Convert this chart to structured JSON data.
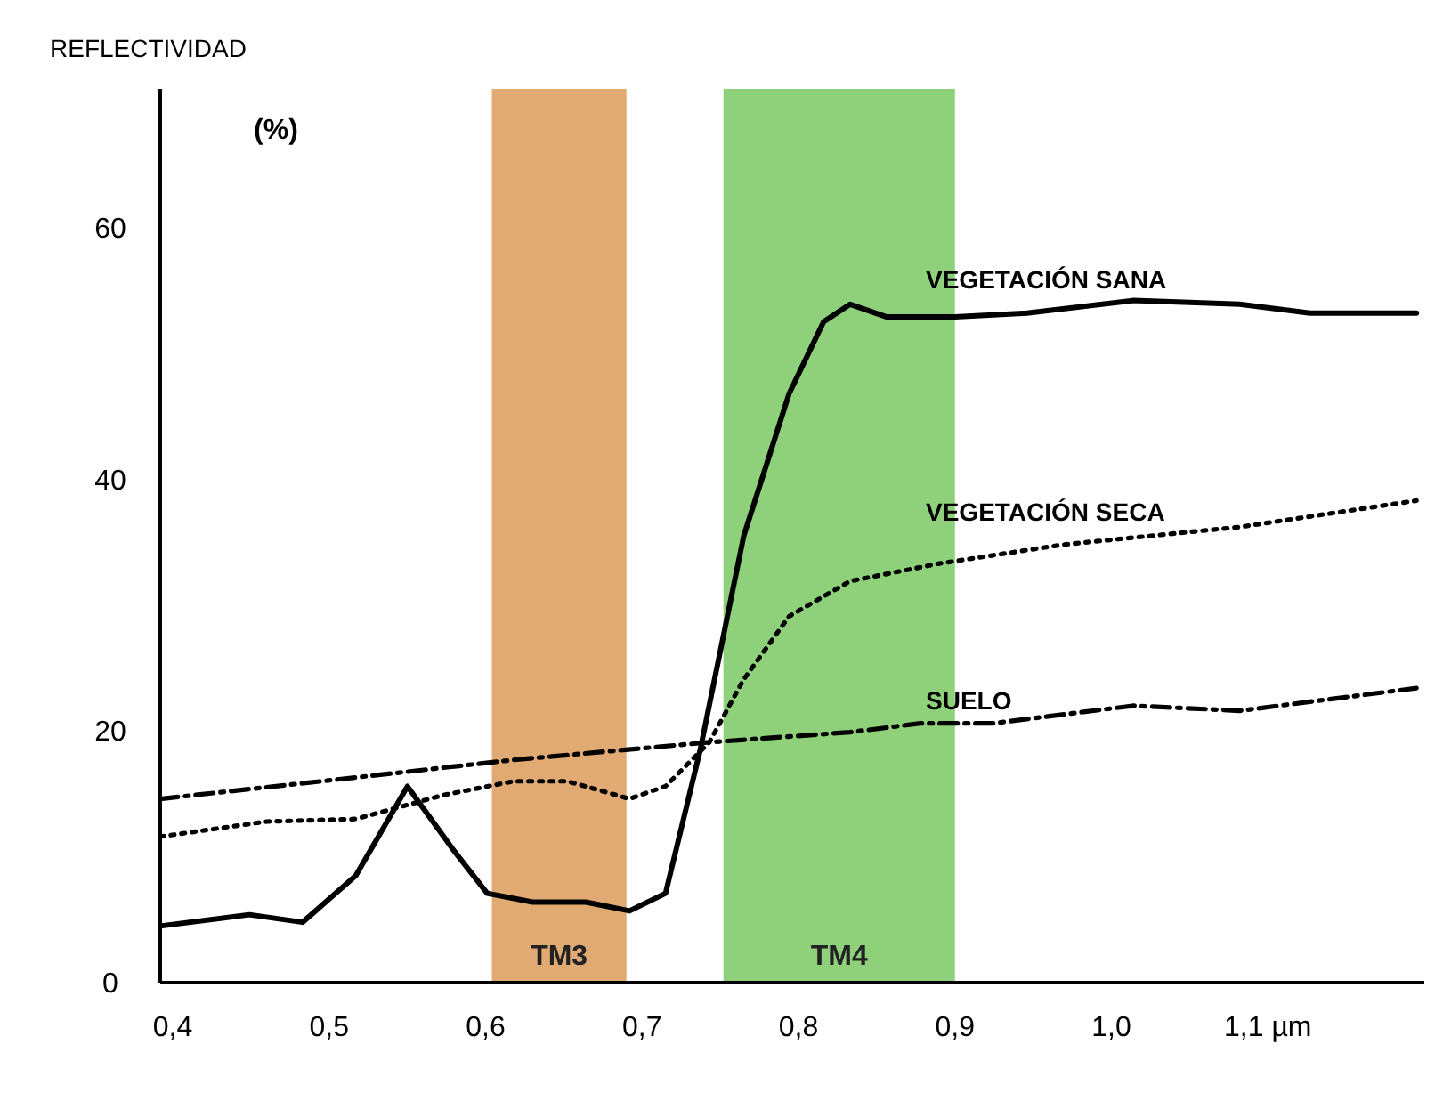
{
  "chart_data": {
    "type": "line",
    "ylabel": "REFLECTIVIDAD",
    "annotations": [
      "(%)"
    ],
    "xlim": [
      0.392,
      1.2
    ],
    "ylim": [
      0,
      71
    ],
    "xticks": [
      {
        "value": 0.4,
        "label": "0,4"
      },
      {
        "value": 0.5,
        "label": "0,5"
      },
      {
        "value": 0.6,
        "label": "0,6"
      },
      {
        "value": 0.7,
        "label": "0,7"
      },
      {
        "value": 0.8,
        "label": "0,8"
      },
      {
        "value": 0.9,
        "label": "0,9"
      },
      {
        "value": 1.0,
        "label": "1,0"
      },
      {
        "value": 1.1,
        "label": "1,1 µm"
      }
    ],
    "yticks": [
      0,
      20,
      40,
      60
    ],
    "grid": false,
    "bands": [
      {
        "axis": "x",
        "from": 0.604,
        "to": 0.69,
        "label": "TM3",
        "color": "#e0aa72"
      },
      {
        "axis": "x",
        "from": 0.752,
        "to": 0.9,
        "label": "TM4",
        "color": "#8fd07a"
      }
    ],
    "series": [
      {
        "name": "VEGETACIÓN SANA",
        "color": "#000000",
        "line_style": "solid",
        "x": [
          0.392,
          0.449,
          0.483,
          0.517,
          0.55,
          0.579,
          0.601,
          0.63,
          0.664,
          0.692,
          0.715,
          0.737,
          0.765,
          0.794,
          0.816,
          0.833,
          0.856,
          0.9,
          0.946,
          1.014,
          1.082,
          1.127,
          1.195
        ],
        "values": [
          4.5,
          5.4,
          4.8,
          8.5,
          15.6,
          10.6,
          7.1,
          6.4,
          6.4,
          5.7,
          7.1,
          18.4,
          35.5,
          46.8,
          52.5,
          53.9,
          52.9,
          52.9,
          53.2,
          54.2,
          53.9,
          53.2,
          53.2
        ]
      },
      {
        "name": "VEGETACIÓN SECA",
        "color": "#000000",
        "line_style": "dotted",
        "x": [
          0.392,
          0.46,
          0.517,
          0.573,
          0.618,
          0.652,
          0.692,
          0.715,
          0.743,
          0.765,
          0.794,
          0.833,
          0.89,
          0.969,
          1.082,
          1.195
        ],
        "values": [
          11.6,
          12.8,
          13,
          14.9,
          16,
          16,
          14.6,
          15.6,
          19.1,
          24.1,
          29.1,
          31.9,
          33.3,
          34.8,
          36.2,
          38.3
        ]
      },
      {
        "name": "SUELO",
        "color": "#000000",
        "line_style": "dashed",
        "x": [
          0.392,
          0.517,
          0.618,
          0.743,
          0.833,
          0.878,
          0.924,
          1.014,
          1.082,
          1.195
        ],
        "values": [
          14.6,
          16.3,
          17.7,
          19.1,
          19.9,
          20.6,
          20.6,
          22,
          21.6,
          23.4
        ]
      }
    ]
  }
}
